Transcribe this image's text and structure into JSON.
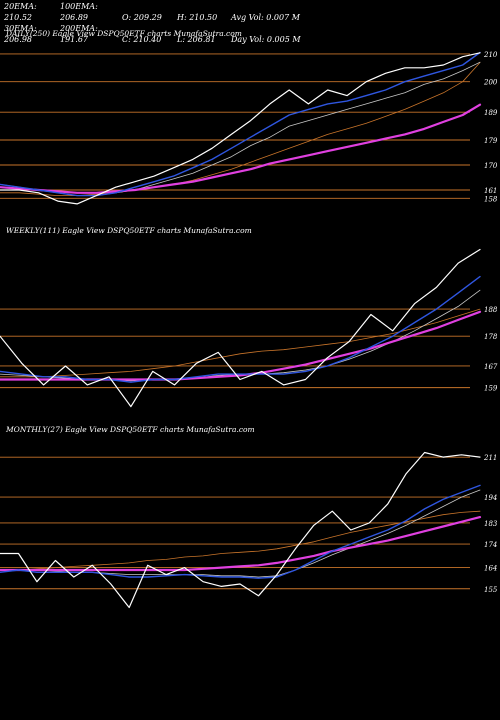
{
  "header": {
    "row1": [
      "20EMA: 210.52",
      "100EMA: 206.89",
      "O: 209.29",
      "H: 210.50",
      "Avg Vol: 0.007 M"
    ],
    "row2": [
      "30EMA: 206.98",
      "200EMA: 191.67",
      "C: 210.40",
      "L: 206.81",
      "Day Vol: 0.005 M"
    ]
  },
  "colors": {
    "background": "#000000",
    "level_line": "#c8742a",
    "price": "#ffffff",
    "ema_blue": "#2f56e0",
    "ema_magenta": "#e040e0",
    "ema_orange": "#c8742a",
    "ema_grey": "#c8c8c8"
  },
  "chart_data": [
    {
      "type": "line",
      "title": "DAILY(250) Eagle  View  DSPQ50ETF charts MunafaSutra.com",
      "levels": [
        210,
        200,
        189,
        179,
        170,
        161,
        158
      ],
      "ylim": [
        152,
        215
      ],
      "grid": false,
      "x": [
        0,
        10,
        20,
        30,
        40,
        50,
        60,
        70,
        80,
        90,
        100,
        110,
        120,
        130,
        140,
        150,
        160,
        170,
        180,
        190,
        200,
        210,
        220,
        230,
        240,
        249
      ],
      "series": [
        {
          "role": "price",
          "values": [
            161,
            161,
            160,
            157,
            156,
            159,
            162,
            164,
            166,
            169,
            172,
            176,
            181,
            186,
            192,
            197,
            192,
            197,
            195,
            200,
            203,
            205,
            205,
            206,
            209,
            210.4
          ]
        },
        {
          "role": "ema20",
          "values": [
            163,
            162,
            161,
            160,
            159,
            159,
            160,
            162,
            164,
            166,
            169,
            172,
            176,
            180,
            184,
            188,
            190,
            192,
            193,
            195,
            197,
            200,
            202,
            204,
            206,
            210.5
          ]
        },
        {
          "role": "ema30",
          "values": [
            163,
            162,
            161,
            160,
            159,
            159,
            160,
            161,
            163,
            165,
            167,
            170,
            173,
            177,
            180,
            184,
            186,
            188,
            190,
            192,
            194,
            196,
            199,
            201,
            204,
            207
          ]
        },
        {
          "role": "ema100",
          "values": [
            160,
            160,
            159.5,
            159,
            159,
            159.5,
            160,
            161,
            162,
            163,
            164.5,
            166.5,
            168.5,
            171,
            173.5,
            176,
            178.5,
            181,
            183,
            185,
            187.5,
            190,
            193,
            196,
            200,
            206.9
          ]
        },
        {
          "role": "ema200",
          "values": [
            162,
            161.5,
            161,
            160.5,
            160,
            160,
            160.5,
            161,
            162,
            163,
            164,
            165.5,
            167,
            168.5,
            170.5,
            172,
            173.5,
            175,
            176.5,
            178,
            179.5,
            181,
            183,
            185.5,
            188,
            191.7
          ]
        }
      ]
    },
    {
      "type": "line",
      "title": "WEEKLY(111) Eagle  View  DSPQ50ETF charts MunafaSutra.com",
      "levels": [
        188,
        178,
        167,
        159
      ],
      "ylim": [
        150,
        215
      ],
      "grid": false,
      "x": [
        0,
        5,
        10,
        15,
        20,
        25,
        30,
        35,
        40,
        45,
        50,
        55,
        60,
        65,
        70,
        75,
        80,
        85,
        90,
        95,
        100,
        105,
        110
      ],
      "series": [
        {
          "role": "price",
          "values": [
            178,
            168,
            160,
            167,
            160,
            163,
            152,
            165,
            160,
            168,
            172,
            162,
            165,
            160,
            162,
            170,
            176,
            186,
            180,
            190,
            196,
            205,
            210
          ]
        },
        {
          "role": "ema20",
          "values": [
            165,
            164,
            163,
            163,
            162,
            162,
            161,
            162,
            162,
            163,
            164,
            164,
            164,
            164,
            165,
            167,
            170,
            174,
            178,
            183,
            188,
            194,
            200
          ]
        },
        {
          "role": "ema30",
          "values": [
            164,
            163.5,
            163,
            162.5,
            162,
            162,
            161.5,
            162,
            162,
            162.5,
            163.5,
            164,
            164,
            164.5,
            165.5,
            167,
            169.5,
            172.5,
            176,
            180,
            184.5,
            189,
            195
          ]
        },
        {
          "role": "ema100",
          "values": [
            163,
            163,
            163,
            163.5,
            164,
            164.5,
            165,
            166,
            167,
            168.5,
            170,
            171.5,
            172.5,
            173,
            174,
            175,
            176,
            177.5,
            179,
            181,
            183,
            185.5,
            188
          ]
        },
        {
          "role": "ema200",
          "values": [
            162,
            162,
            162,
            162,
            162,
            162,
            162,
            162,
            162,
            162.5,
            163,
            163.5,
            164.5,
            166,
            167.5,
            169.5,
            171.5,
            173.5,
            176,
            178.5,
            181,
            184,
            187
          ]
        }
      ]
    },
    {
      "type": "line",
      "title": "MONTHLY(27) Eagle  View  DSPQ50ETF charts MunafaSutra.com",
      "levels": [
        211,
        194,
        183,
        174,
        164,
        155
      ],
      "ylim": [
        140,
        220
      ],
      "grid": false,
      "x": [
        0,
        1,
        2,
        3,
        4,
        5,
        6,
        7,
        8,
        9,
        10,
        11,
        12,
        13,
        14,
        15,
        16,
        17,
        18,
        19,
        20,
        21,
        22,
        23,
        24,
        25,
        26
      ],
      "series": [
        {
          "role": "price",
          "values": [
            170,
            170,
            158,
            167,
            160,
            165,
            157,
            147,
            165,
            161,
            164,
            158,
            156,
            157,
            152,
            161,
            172,
            182,
            188,
            180,
            183,
            191,
            204,
            213,
            211,
            212,
            211
          ]
        },
        {
          "role": "ema20",
          "values": [
            162,
            163,
            162,
            162,
            162,
            162,
            161,
            160,
            160,
            160.5,
            161,
            160.5,
            160,
            160,
            159.5,
            160,
            163,
            167,
            171,
            174,
            177,
            180,
            184,
            189,
            193,
            196,
            199
          ]
        },
        {
          "role": "ema30",
          "values": [
            163,
            163,
            163,
            162.5,
            162,
            162,
            161.5,
            161,
            161,
            161,
            161,
            161,
            160.5,
            160.5,
            160,
            160.5,
            163,
            166,
            169.5,
            172.5,
            175.5,
            178.5,
            182,
            186,
            190,
            194,
            197
          ]
        },
        {
          "role": "ema100",
          "values": [
            163,
            163,
            163.5,
            164,
            164.5,
            165,
            165.5,
            166,
            167,
            167.5,
            168.5,
            169,
            170,
            170.5,
            171,
            172,
            173.5,
            175,
            177,
            179,
            180.5,
            182,
            183.5,
            185,
            186.5,
            187.5,
            188
          ]
        },
        {
          "role": "ema200",
          "values": [
            163,
            163,
            163,
            163,
            163,
            163,
            163,
            163,
            163,
            163,
            163,
            163.5,
            164,
            164.5,
            165,
            166,
            167.5,
            169,
            171,
            172.5,
            174,
            175.5,
            177.5,
            179.5,
            181.5,
            183.5,
            185.5
          ]
        }
      ]
    }
  ]
}
